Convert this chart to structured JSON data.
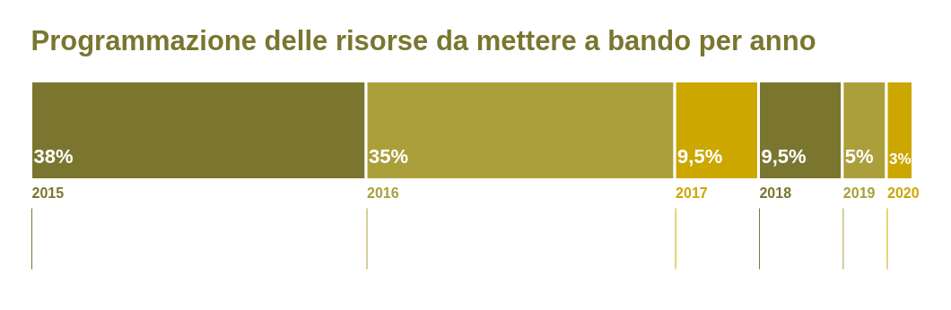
{
  "chart_data": {
    "type": "bar",
    "title": "Programmazione delle risorse da mettere a bando per anno",
    "orientation": "horizontal",
    "stacked": true,
    "categories": [
      null
    ],
    "xlim": [
      0,
      100
    ],
    "tick_labels": false,
    "grid": false,
    "series": [
      {
        "name": "2015",
        "color": "#7a7630",
        "values": [
          38
        ],
        "value_labels": [
          "38%"
        ]
      },
      {
        "name": "2016",
        "color": "#ab9f3b",
        "values": [
          35
        ],
        "value_labels": [
          "35%"
        ]
      },
      {
        "name": "2017",
        "color": "#cca700",
        "values": [
          9.5
        ],
        "value_labels": [
          "9,5%"
        ]
      },
      {
        "name": "2018",
        "color": "#7a7630",
        "values": [
          9.5
        ],
        "value_labels": [
          "9,5%"
        ]
      },
      {
        "name": "2019",
        "color": "#ab9f3b",
        "values": [
          5
        ],
        "value_labels": [
          "5%"
        ]
      },
      {
        "name": "2020",
        "color": "#cca700",
        "values": [
          3
        ],
        "value_labels": [
          "3%"
        ]
      }
    ]
  }
}
